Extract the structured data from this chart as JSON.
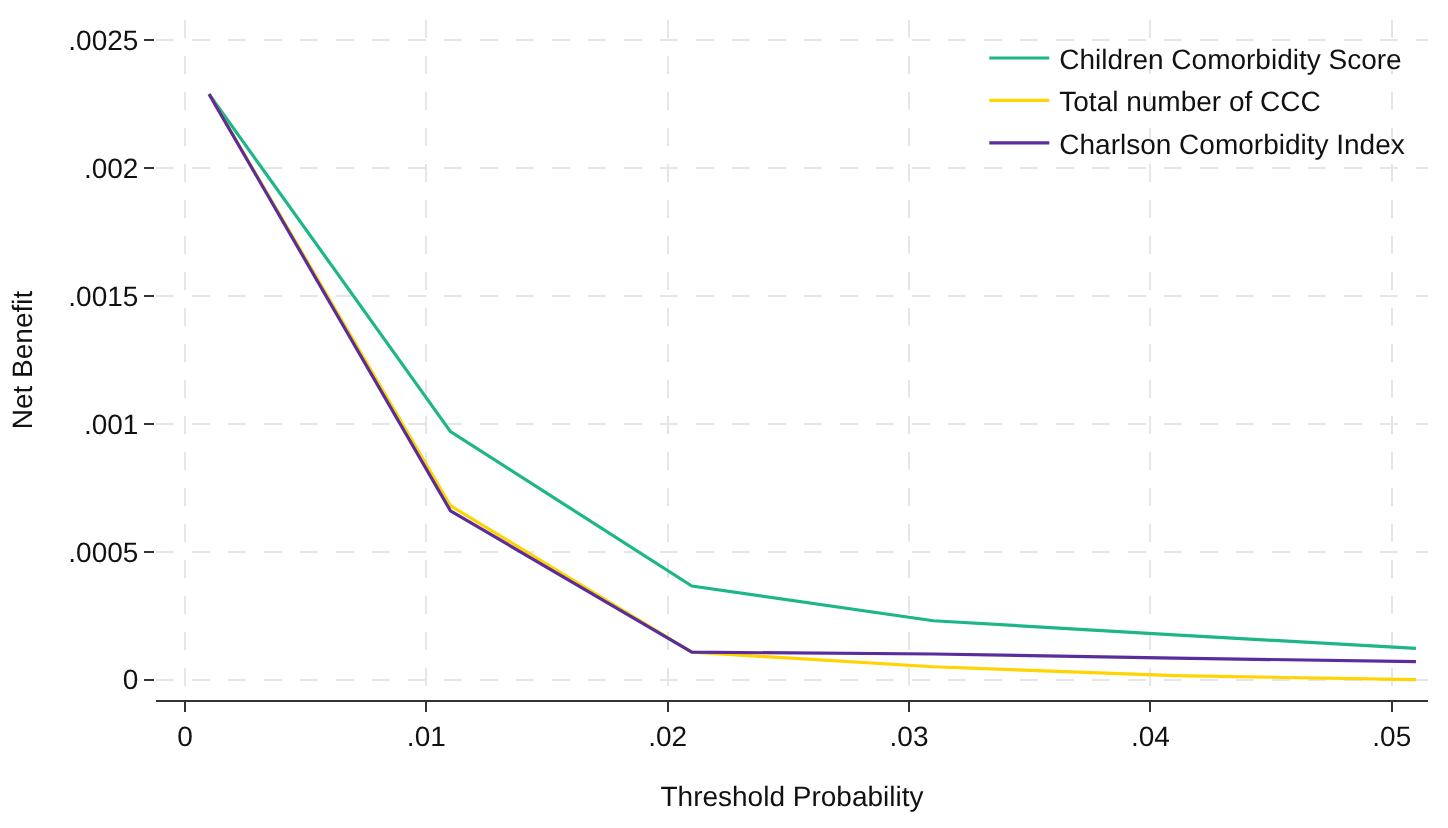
{
  "chart_data": {
    "type": "line",
    "xlabel": "Threshold Probability",
    "ylabel": "Net Benefit",
    "x": [
      0.001,
      0.011,
      0.021,
      0.031,
      0.041,
      0.051
    ],
    "series": [
      {
        "name": "Children Comorbidity Score",
        "color": "#1db688",
        "values": [
          0.00229,
          0.00097,
          0.000366,
          0.00023,
          0.000175,
          0.000122
        ]
      },
      {
        "name": "Total number of CCC",
        "color": "#ffd400",
        "values": [
          0.00229,
          0.00068,
          0.000107,
          5e-05,
          1.5e-05,
          0.0
        ]
      },
      {
        "name": "Charlson Comorbidity Index",
        "color": "#5a2d9c",
        "values": [
          0.00229,
          0.00066,
          0.000107,
          0.0001,
          8.4e-05,
          7e-05
        ]
      }
    ],
    "xlim": [
      -0.0012,
      0.0515
    ],
    "ylim": [
      -8e-05,
      0.00258
    ],
    "xticks": [
      {
        "value": 0,
        "label": "0"
      },
      {
        "value": 0.01,
        "label": ".01"
      },
      {
        "value": 0.02,
        "label": ".02"
      },
      {
        "value": 0.03,
        "label": ".03"
      },
      {
        "value": 0.04,
        "label": ".04"
      },
      {
        "value": 0.05,
        "label": ".05"
      }
    ],
    "yticks": [
      {
        "value": 0,
        "label": "0"
      },
      {
        "value": 0.0005,
        "label": ".0005"
      },
      {
        "value": 0.001,
        "label": ".001"
      },
      {
        "value": 0.0015,
        "label": ".0015"
      },
      {
        "value": 0.002,
        "label": ".002"
      },
      {
        "value": 0.0025,
        "label": ".0025"
      }
    ],
    "grid": true,
    "legend": "top right",
    "line_style": "solid",
    "marker": "none"
  }
}
